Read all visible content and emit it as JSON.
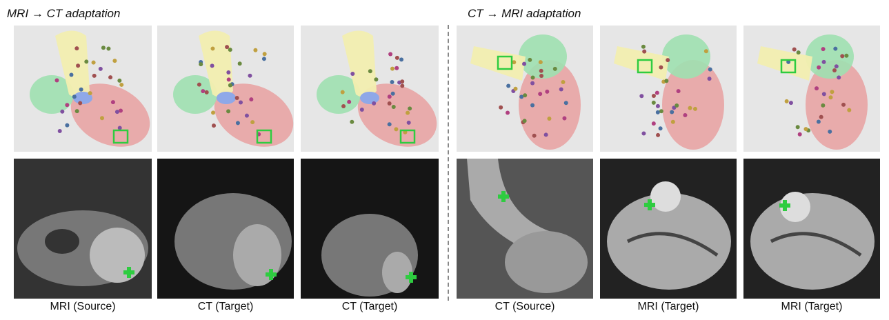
{
  "titles": {
    "left": "MRI → CT adaptation",
    "right": "CT → MRI adaptation"
  },
  "columns": [
    {
      "caption": "MRI (Source)"
    },
    {
      "caption": "CT (Target)"
    },
    {
      "caption": "CT (Target)"
    },
    {
      "caption": "CT (Source)"
    },
    {
      "caption": "MRI  (Target)"
    },
    {
      "caption": "MRI  (Target)"
    }
  ],
  "colors": {
    "marker": "#2ecc40",
    "aorta": "#f2eeb0",
    "atrium": "#9fe0b0",
    "ventricle": "#e8a0a0",
    "render_bg": "#e6e6e6"
  },
  "icons": {
    "marker_box": "square-outline",
    "scan_marker": "plus-cross"
  }
}
